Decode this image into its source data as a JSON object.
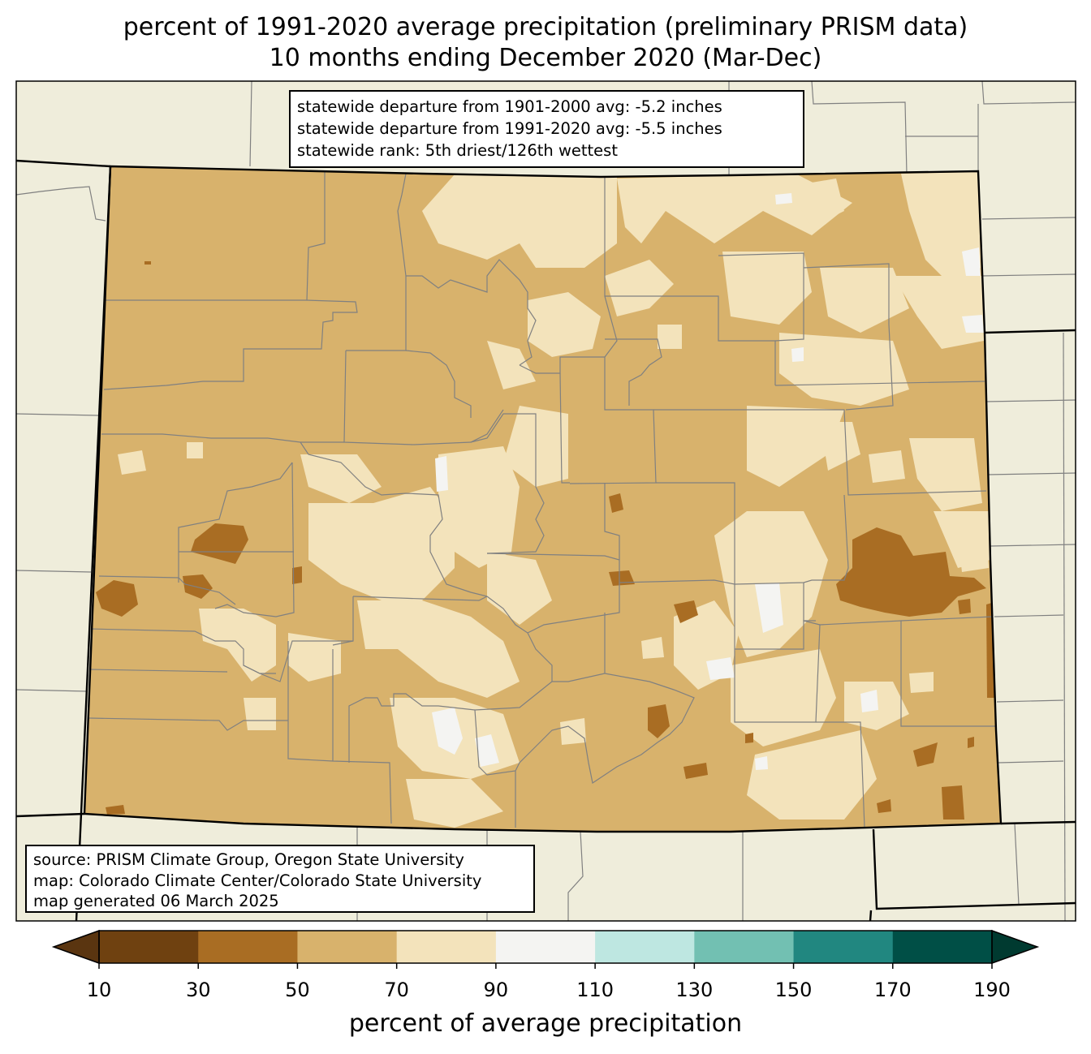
{
  "title": {
    "line1": "percent of 1991-2020 average precipitation (preliminary PRISM data)",
    "line2": "10 months ending December 2020 (Mar-Dec)"
  },
  "stats_box": {
    "line1": "statewide departure from 1901-2000 avg: -5.2 inches",
    "line2": "statewide departure from 1991-2020 avg: -5.5 inches",
    "line3": "statewide rank: 5th driest/126th wettest"
  },
  "source_box": {
    "line1": "source: PRISM Climate Group, Oregon State University",
    "line2": "map: Colorado Climate Center/Colorado State University",
    "line3": "map generated 06 March 2025"
  },
  "colorbar": {
    "label": "percent of average precipitation",
    "ticks": [
      "10",
      "30",
      "50",
      "70",
      "90",
      "110",
      "130",
      "150",
      "170",
      "190"
    ],
    "bins": [
      {
        "range": "10-30",
        "color": "#6f4110"
      },
      {
        "range": "30-50",
        "color": "#a96d23"
      },
      {
        "range": "50-70",
        "color": "#d8b26c"
      },
      {
        "range": "70-90",
        "color": "#f3e3bb"
      },
      {
        "range": "90-110",
        "color": "#f4f4f2"
      },
      {
        "range": "110-130",
        "color": "#bee7e1"
      },
      {
        "range": "130-150",
        "color": "#72c0b2"
      },
      {
        "range": "150-170",
        "color": "#218780"
      },
      {
        "range": "170-190",
        "color": "#004f46"
      }
    ],
    "under_color": "#5a3510",
    "over_color": "#003a30"
  },
  "colors": {
    "background_land": "#efeddb",
    "state_border": "#000000",
    "county_border": "#808080"
  }
}
